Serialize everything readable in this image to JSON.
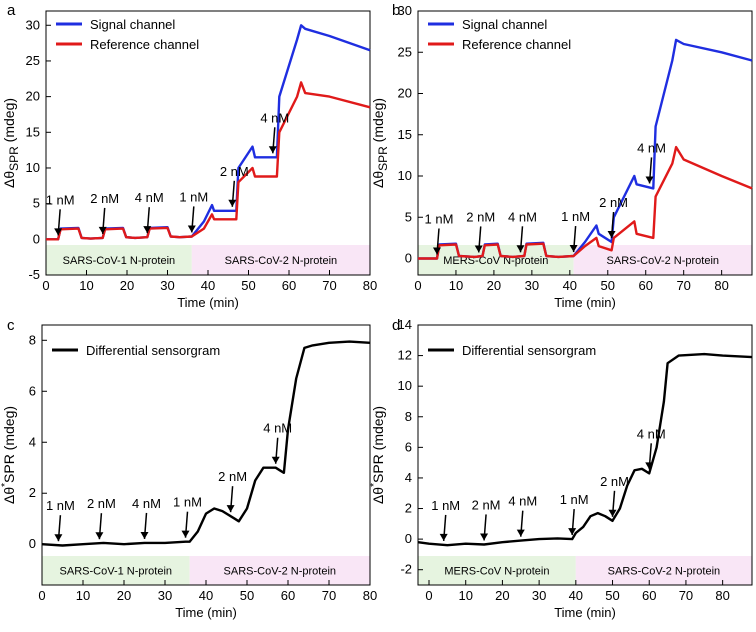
{
  "chart_data": [
    {
      "panel_label": "a",
      "type": "line",
      "xlabel": "Time (min)",
      "ylabel": {
        "prefix": "Δθ",
        "sub": "SPR",
        "suffix": " (mdeg)"
      },
      "xlim": [
        0,
        80
      ],
      "ylim": [
        -5,
        32
      ],
      "xticks": [
        "0",
        "10",
        "20",
        "30",
        "40",
        "50",
        "60",
        "70",
        "80"
      ],
      "yticks": [
        "-5",
        "0",
        "5",
        "10",
        "15",
        "20",
        "25",
        "30"
      ],
      "legend": {
        "placement": "top-left",
        "entries": [
          "Signal channel",
          "Reference channel"
        ]
      },
      "series": [
        {
          "name": "Signal channel",
          "color": "#1f2ee0",
          "x": [
            0,
            3,
            3.6,
            8,
            8.8,
            11,
            14,
            14.6,
            19,
            19.8,
            22,
            25,
            25.6,
            30,
            30.8,
            33,
            36,
            39,
            41,
            41.5,
            47,
            47.5,
            51,
            51.6,
            57,
            57.6,
            62,
            63,
            64,
            70,
            80
          ],
          "y": [
            0,
            0,
            1.5,
            1.6,
            0.2,
            0.1,
            0.2,
            1.5,
            1.6,
            0.3,
            0.2,
            0.3,
            1.6,
            1.7,
            0.4,
            0.3,
            0.4,
            2.5,
            4.8,
            4.0,
            4.0,
            10.0,
            13.0,
            11.5,
            11.5,
            20.0,
            28.0,
            30.0,
            29.5,
            28.5,
            26.5
          ]
        },
        {
          "name": "Reference channel",
          "color": "#e01a1a",
          "x": [
            0,
            3,
            3.6,
            8,
            8.8,
            11,
            14,
            14.6,
            19,
            19.8,
            22,
            25,
            25.6,
            30,
            30.8,
            33,
            36,
            39,
            41,
            41.5,
            47,
            47.5,
            51,
            51.6,
            57,
            57.6,
            62,
            63,
            64,
            70,
            80
          ],
          "y": [
            0,
            0,
            1.4,
            1.5,
            0.2,
            0.1,
            0.2,
            1.4,
            1.5,
            0.3,
            0.2,
            0.3,
            1.5,
            1.6,
            0.4,
            0.3,
            0.4,
            1.5,
            3.5,
            2.8,
            2.8,
            8.0,
            10.0,
            8.8,
            8.8,
            15.0,
            20.0,
            22.0,
            20.5,
            20.0,
            18.5
          ]
        }
      ],
      "annotations": [
        {
          "text": "1 nM",
          "x": 3
        },
        {
          "text": "2 nM",
          "x": 14
        },
        {
          "text": "4 nM",
          "x": 25
        },
        {
          "text": "1 nM",
          "x": 36
        },
        {
          "text": "2 nM",
          "x": 46
        },
        {
          "text": "4 nM",
          "x": 56
        }
      ],
      "bands": [
        {
          "text": "SARS-CoV-1 N-protein",
          "x0": 0,
          "x1": 36,
          "color": "#e6f4e0"
        },
        {
          "text": "SARS-CoV-2 N-protein",
          "x0": 36,
          "x1": 80,
          "color": "#f9e6f6"
        }
      ]
    },
    {
      "panel_label": "b",
      "type": "line",
      "xlabel": "Time (min)",
      "ylabel": {
        "prefix": "Δθ",
        "sub": "SPR",
        "suffix": " (mdeg)"
      },
      "xlim": [
        0,
        88
      ],
      "ylim": [
        -2,
        30
      ],
      "xticks": [
        "0",
        "10",
        "20",
        "30",
        "40",
        "50",
        "60",
        "70",
        "80"
      ],
      "yticks": [
        "0",
        "5",
        "10",
        "15",
        "20",
        "25",
        "30"
      ],
      "legend": {
        "placement": "top-left",
        "entries": [
          "Signal channel",
          "Reference channel"
        ]
      },
      "series": [
        {
          "name": "Signal channel",
          "color": "#1f2ee0",
          "x": [
            0,
            5,
            5.6,
            10,
            10.8,
            15,
            17,
            17.6,
            21,
            21.8,
            25,
            28,
            28.6,
            33,
            33.8,
            37,
            41,
            44,
            47,
            47.6,
            51,
            51.6,
            57,
            57.6,
            62,
            62.6,
            67,
            68,
            70,
            80,
            88
          ],
          "y": [
            0,
            0,
            1.7,
            1.8,
            0.3,
            0.2,
            0.3,
            1.7,
            1.8,
            0.3,
            0.2,
            0.3,
            1.8,
            1.9,
            0.3,
            0.2,
            0.3,
            2.0,
            4.0,
            3.0,
            2.0,
            5.0,
            10.0,
            9.0,
            8.5,
            16.0,
            24.0,
            26.5,
            26.0,
            25.0,
            24.0
          ]
        },
        {
          "name": "Reference channel",
          "color": "#e01a1a",
          "x": [
            0,
            5,
            5.6,
            10,
            10.8,
            15,
            17,
            17.6,
            21,
            21.8,
            25,
            28,
            28.6,
            33,
            33.8,
            37,
            41,
            44,
            47,
            47.6,
            51,
            51.6,
            57,
            57.6,
            62,
            62.6,
            67,
            68,
            70,
            80,
            88
          ],
          "y": [
            0,
            0,
            1.6,
            1.7,
            0.3,
            0.2,
            0.3,
            1.6,
            1.7,
            0.3,
            0.2,
            0.3,
            1.7,
            1.8,
            0.3,
            0.2,
            0.3,
            1.5,
            2.5,
            1.5,
            1.0,
            2.5,
            4.5,
            3.0,
            2.5,
            7.5,
            11.5,
            13.5,
            12.0,
            10.0,
            8.5
          ]
        }
      ],
      "annotations": [
        {
          "text": "1 nM",
          "x": 5
        },
        {
          "text": "2 nM",
          "x": 16
        },
        {
          "text": "4 nM",
          "x": 27
        },
        {
          "text": "1 nM",
          "x": 41
        },
        {
          "text": "2 nM",
          "x": 51
        },
        {
          "text": "4 nM",
          "x": 61
        }
      ],
      "bands": [
        {
          "text": "MERS-CoV N-protein",
          "x0": 0,
          "x1": 41,
          "color": "#e6f4e0"
        },
        {
          "text": "SARS-CoV-2 N-protein",
          "x0": 41,
          "x1": 88,
          "color": "#f9e6f6"
        }
      ]
    },
    {
      "panel_label": "c",
      "type": "line",
      "xlabel": "Time (min)",
      "ylabel": {
        "prefix": "Δθ",
        "sup": "*",
        "mid": "SPR",
        "suffix": " (mdeg)"
      },
      "xlim": [
        0,
        80
      ],
      "ylim": [
        -1.6,
        8.6
      ],
      "xticks": [
        "0",
        "10",
        "20",
        "30",
        "40",
        "50",
        "60",
        "70",
        "80"
      ],
      "yticks": [
        "0",
        "2",
        "4",
        "6",
        "8"
      ],
      "legend": {
        "placement": "top-left",
        "entries": [
          "Differential sensorgram"
        ]
      },
      "series": [
        {
          "name": "Differential sensorgram",
          "color": "#000000",
          "x": [
            0,
            5,
            10,
            15,
            20,
            25,
            30,
            35,
            36,
            38,
            40,
            42,
            44,
            47,
            48,
            50,
            52,
            54,
            57,
            58,
            59,
            60,
            62,
            64,
            66,
            70,
            75,
            80
          ],
          "y": [
            0,
            -0.05,
            0,
            0.05,
            0,
            0.05,
            0.05,
            0.1,
            0.1,
            0.5,
            1.2,
            1.4,
            1.3,
            1.0,
            0.9,
            1.4,
            2.5,
            3.0,
            3.0,
            2.9,
            2.8,
            4.5,
            6.5,
            7.7,
            7.8,
            7.9,
            7.95,
            7.9
          ]
        }
      ],
      "annotations": [
        {
          "text": "1 nM",
          "x": 4
        },
        {
          "text": "2 nM",
          "x": 14
        },
        {
          "text": "4 nM",
          "x": 25
        },
        {
          "text": "1 nM",
          "x": 35
        },
        {
          "text": "2 nM",
          "x": 46
        },
        {
          "text": "4 nM",
          "x": 57
        }
      ],
      "bands": [
        {
          "text": "SARS-CoV-1 N-protein",
          "x0": 0,
          "x1": 36,
          "color": "#e6f4e0"
        },
        {
          "text": "SARS-CoV-2 N-protein",
          "x0": 36,
          "x1": 80,
          "color": "#f9e6f6"
        }
      ]
    },
    {
      "panel_label": "d",
      "type": "line",
      "xlabel": "Time (min)",
      "ylabel": {
        "prefix": "Δθ",
        "sup": "*",
        "mid": "SPR",
        "suffix": " (mdeg)"
      },
      "xlim": [
        -3,
        88
      ],
      "ylim": [
        -3,
        14
      ],
      "xticks": [
        "0",
        "10",
        "20",
        "30",
        "40",
        "50",
        "60",
        "70",
        "80"
      ],
      "yticks": [
        "-2",
        "0",
        "2",
        "4",
        "6",
        "8",
        "10",
        "12",
        "14"
      ],
      "legend": {
        "placement": "top-left",
        "entries": [
          "Differential sensorgram"
        ]
      },
      "series": [
        {
          "name": "Differential sensorgram",
          "color": "#000000",
          "x": [
            -3,
            0,
            5,
            10,
            15,
            20,
            25,
            30,
            35,
            39,
            40,
            42,
            44,
            46,
            48,
            50,
            52,
            54,
            56,
            58,
            60,
            62,
            64,
            65,
            68,
            75,
            80,
            88
          ],
          "y": [
            -0.2,
            -0.3,
            -0.4,
            -0.3,
            -0.35,
            -0.2,
            -0.1,
            0,
            0.05,
            0,
            0.4,
            0.8,
            1.5,
            1.7,
            1.5,
            1.2,
            2.0,
            3.5,
            4.5,
            4.6,
            4.3,
            6.0,
            9.0,
            11.5,
            12.0,
            12.1,
            12.0,
            11.9
          ]
        }
      ],
      "annotations": [
        {
          "text": "1 nM",
          "x": 4
        },
        {
          "text": "2 nM",
          "x": 15
        },
        {
          "text": "4 nM",
          "x": 25
        },
        {
          "text": "1 nM",
          "x": 39
        },
        {
          "text": "2 nM",
          "x": 50
        },
        {
          "text": "4 nM",
          "x": 60
        }
      ],
      "bands": [
        {
          "text": "MERS-CoV N-protein",
          "x0": -3,
          "x1": 40,
          "color": "#e6f4e0"
        },
        {
          "text": "SARS-CoV-2 N-protein",
          "x0": 40,
          "x1": 88,
          "color": "#f9e6f6"
        }
      ]
    }
  ]
}
